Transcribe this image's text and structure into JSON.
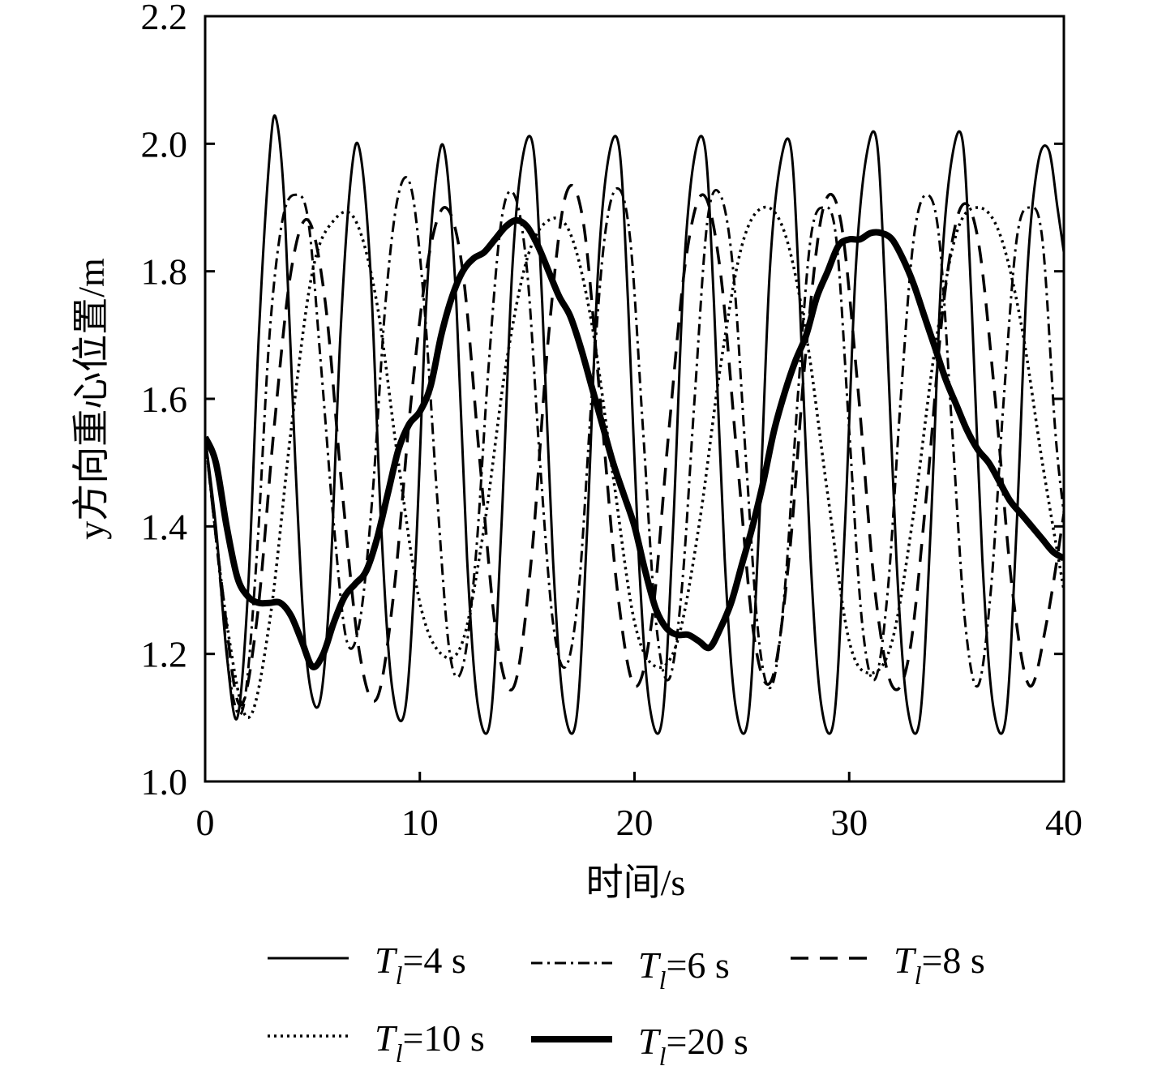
{
  "chart_data": {
    "type": "line",
    "xlabel": "时间/s",
    "ylabel": "y方向重心位置/m",
    "xlim": [
      0,
      40
    ],
    "ylim": [
      1.0,
      2.2
    ],
    "xticks": [
      0,
      10,
      20,
      30,
      40
    ],
    "yticks": [
      1.0,
      1.2,
      1.4,
      1.6,
      1.8,
      2.0,
      2.2
    ],
    "xtick_labels": [
      "0",
      "10",
      "20",
      "30",
      "40"
    ],
    "ytick_labels": [
      "1.0",
      "1.2",
      "1.4",
      "1.6",
      "1.8",
      "2.0",
      "2.2"
    ],
    "grid": false,
    "legend_position": "bottom",
    "series": [
      {
        "name": "Tl=4 s",
        "label_main": "T",
        "label_sub": "l",
        "label_rest": "=4 s",
        "style": "solid",
        "width": 3,
        "x": [
          0,
          0.5,
          1,
          1.5,
          2,
          2.5,
          3,
          3.3,
          3.7,
          4.2,
          4.7,
          5.3,
          5.8,
          6.3,
          6.8,
          7.2,
          7.7,
          8.2,
          8.7,
          9.3,
          9.8,
          10.3,
          10.8,
          11.2,
          11.7,
          12.2,
          12.7,
          13.3,
          13.8,
          14.3,
          14.8,
          15.3,
          15.7,
          16.2,
          16.7,
          17.3,
          17.8,
          18.3,
          18.8,
          19.3,
          19.7,
          20.2,
          20.7,
          21.3,
          21.8,
          22.3,
          22.8,
          23.3,
          23.7,
          24.2,
          24.7,
          25.3,
          25.8,
          26.3,
          26.8,
          27.3,
          27.7,
          28.2,
          28.7,
          29.3,
          29.8,
          30.3,
          30.8,
          31.3,
          31.7,
          32.2,
          32.7,
          33.3,
          33.8,
          34.3,
          34.8,
          35.3,
          35.7,
          36.2,
          36.7,
          37.3,
          37.8,
          38.3,
          38.8,
          39.3,
          39.7,
          40
        ],
        "y": [
          1.54,
          1.4,
          1.2,
          1.1,
          1.3,
          1.7,
          1.98,
          2.04,
          1.9,
          1.5,
          1.2,
          1.12,
          1.3,
          1.7,
          1.95,
          1.99,
          1.8,
          1.4,
          1.15,
          1.11,
          1.35,
          1.75,
          1.96,
          1.98,
          1.75,
          1.35,
          1.12,
          1.1,
          1.4,
          1.8,
          1.98,
          1.99,
          1.75,
          1.35,
          1.12,
          1.1,
          1.4,
          1.8,
          1.98,
          1.99,
          1.75,
          1.35,
          1.12,
          1.1,
          1.4,
          1.8,
          1.98,
          1.99,
          1.75,
          1.35,
          1.12,
          1.1,
          1.4,
          1.8,
          1.97,
          1.99,
          1.75,
          1.35,
          1.12,
          1.1,
          1.4,
          1.8,
          1.98,
          2.0,
          1.75,
          1.35,
          1.12,
          1.1,
          1.4,
          1.8,
          1.98,
          2.0,
          1.75,
          1.35,
          1.12,
          1.1,
          1.4,
          1.8,
          1.97,
          1.99,
          1.9,
          1.83
        ]
      },
      {
        "name": "Tl=6 s",
        "label_main": "T",
        "label_sub": "l",
        "label_rest": "=6 s",
        "style": "dashdot",
        "width": 3,
        "x": [
          0,
          0.6,
          1.2,
          1.8,
          2.4,
          3.0,
          3.6,
          4.2,
          4.8,
          5.4,
          6.0,
          6.6,
          7.2,
          7.8,
          8.4,
          9.0,
          9.6,
          10.2,
          10.8,
          11.4,
          12.0,
          12.6,
          13.2,
          13.8,
          14.4,
          15.0,
          15.6,
          16.2,
          16.8,
          17.4,
          18.0,
          18.6,
          19.2,
          19.8,
          20.4,
          21.0,
          21.6,
          22.2,
          22.8,
          23.4,
          24.0,
          24.6,
          25.2,
          25.8,
          26.4,
          27.0,
          27.6,
          28.2,
          28.8,
          29.4,
          30.0,
          30.6,
          31.2,
          31.8,
          32.4,
          33.0,
          33.6,
          34.2,
          34.8,
          35.4,
          36.0,
          36.6,
          37.2,
          37.8,
          38.4,
          39.0,
          39.6,
          40
        ],
        "y": [
          1.54,
          1.35,
          1.15,
          1.12,
          1.35,
          1.7,
          1.88,
          1.92,
          1.88,
          1.65,
          1.4,
          1.22,
          1.25,
          1.45,
          1.75,
          1.92,
          1.93,
          1.75,
          1.45,
          1.2,
          1.18,
          1.35,
          1.65,
          1.88,
          1.92,
          1.8,
          1.5,
          1.25,
          1.18,
          1.3,
          1.6,
          1.85,
          1.93,
          1.85,
          1.55,
          1.25,
          1.16,
          1.3,
          1.6,
          1.88,
          1.92,
          1.8,
          1.5,
          1.22,
          1.15,
          1.3,
          1.6,
          1.85,
          1.9,
          1.85,
          1.55,
          1.25,
          1.16,
          1.3,
          1.6,
          1.85,
          1.92,
          1.85,
          1.55,
          1.25,
          1.15,
          1.3,
          1.6,
          1.85,
          1.9,
          1.85,
          1.55,
          1.42
        ]
      },
      {
        "name": "Tl=8 s",
        "label_main": "T",
        "label_sub": "l",
        "label_rest": "=8 s",
        "style": "dashed",
        "width": 3.5,
        "x": [
          0,
          0.8,
          1.6,
          2.4,
          3.2,
          4.0,
          4.8,
          5.6,
          6.4,
          7.2,
          8.0,
          8.8,
          9.6,
          10.4,
          11.2,
          12.0,
          12.8,
          13.6,
          14.4,
          15.2,
          16.0,
          16.8,
          17.6,
          18.4,
          19.2,
          20.0,
          20.8,
          21.6,
          22.4,
          23.2,
          24.0,
          24.8,
          25.6,
          26.4,
          27.2,
          28.0,
          28.8,
          29.6,
          30.4,
          31.2,
          32.0,
          32.8,
          33.6,
          34.4,
          35.2,
          36.0,
          36.8,
          37.6,
          38.4,
          39.2,
          40
        ],
        "y": [
          1.54,
          1.3,
          1.12,
          1.25,
          1.55,
          1.8,
          1.88,
          1.75,
          1.45,
          1.2,
          1.13,
          1.3,
          1.6,
          1.82,
          1.9,
          1.8,
          1.5,
          1.22,
          1.15,
          1.35,
          1.7,
          1.92,
          1.88,
          1.6,
          1.3,
          1.15,
          1.25,
          1.55,
          1.82,
          1.92,
          1.8,
          1.5,
          1.22,
          1.16,
          1.35,
          1.68,
          1.9,
          1.88,
          1.62,
          1.3,
          1.15,
          1.2,
          1.45,
          1.75,
          1.9,
          1.85,
          1.6,
          1.3,
          1.15,
          1.25,
          1.42
        ]
      },
      {
        "name": "Tl=10 s",
        "label_main": "T",
        "label_sub": "l",
        "label_rest": "=10 s",
        "style": "dotted",
        "width": 3.5,
        "x": [
          0,
          1,
          2,
          3,
          4,
          5,
          6,
          7,
          8,
          9,
          10,
          11,
          12,
          13,
          14,
          15,
          16,
          17,
          18,
          19,
          20,
          21,
          22,
          23,
          24,
          25,
          26,
          27,
          28,
          29,
          30,
          31,
          32,
          33,
          34,
          35,
          36,
          37,
          38,
          39,
          40
        ],
        "y": [
          1.54,
          1.25,
          1.1,
          1.25,
          1.55,
          1.8,
          1.88,
          1.88,
          1.75,
          1.5,
          1.28,
          1.2,
          1.22,
          1.4,
          1.65,
          1.82,
          1.88,
          1.86,
          1.72,
          1.48,
          1.25,
          1.18,
          1.22,
          1.4,
          1.65,
          1.84,
          1.9,
          1.86,
          1.7,
          1.45,
          1.22,
          1.17,
          1.22,
          1.42,
          1.68,
          1.86,
          1.9,
          1.86,
          1.72,
          1.5,
          1.3
        ]
      },
      {
        "name": "Tl=20 s",
        "label_main": "T",
        "label_sub": "l",
        "label_rest": "=20 s",
        "style": "solid",
        "width": 8,
        "x": [
          0,
          0.5,
          1,
          1.5,
          2,
          2.5,
          3,
          3.5,
          4,
          4.5,
          5,
          5.5,
          6,
          6.5,
          7,
          7.5,
          8,
          8.5,
          9,
          9.5,
          10,
          10.5,
          11,
          11.5,
          12,
          12.5,
          13,
          13.5,
          14,
          14.5,
          15,
          15.5,
          16,
          16.5,
          17,
          17.5,
          18,
          18.5,
          19,
          19.5,
          20,
          20.5,
          21,
          21.5,
          22,
          22.5,
          23,
          23.5,
          24,
          24.5,
          25,
          25.5,
          26,
          26.5,
          27,
          27.5,
          28,
          28.5,
          29,
          29.5,
          30,
          30.5,
          31,
          31.5,
          32,
          32.5,
          33,
          33.5,
          34,
          34.5,
          35,
          35.5,
          36,
          36.5,
          37,
          37.5,
          38,
          38.5,
          39,
          39.5,
          40
        ],
        "y": [
          1.54,
          1.5,
          1.4,
          1.32,
          1.29,
          1.28,
          1.28,
          1.28,
          1.26,
          1.22,
          1.18,
          1.2,
          1.25,
          1.29,
          1.31,
          1.33,
          1.38,
          1.45,
          1.52,
          1.56,
          1.58,
          1.62,
          1.7,
          1.76,
          1.8,
          1.82,
          1.83,
          1.85,
          1.87,
          1.88,
          1.87,
          1.84,
          1.8,
          1.76,
          1.73,
          1.68,
          1.62,
          1.56,
          1.5,
          1.45,
          1.4,
          1.33,
          1.27,
          1.24,
          1.23,
          1.23,
          1.22,
          1.21,
          1.24,
          1.28,
          1.34,
          1.4,
          1.47,
          1.55,
          1.61,
          1.66,
          1.7,
          1.76,
          1.8,
          1.84,
          1.85,
          1.85,
          1.86,
          1.86,
          1.85,
          1.82,
          1.78,
          1.73,
          1.68,
          1.63,
          1.59,
          1.55,
          1.52,
          1.5,
          1.47,
          1.44,
          1.42,
          1.4,
          1.38,
          1.36,
          1.35
        ]
      }
    ]
  }
}
